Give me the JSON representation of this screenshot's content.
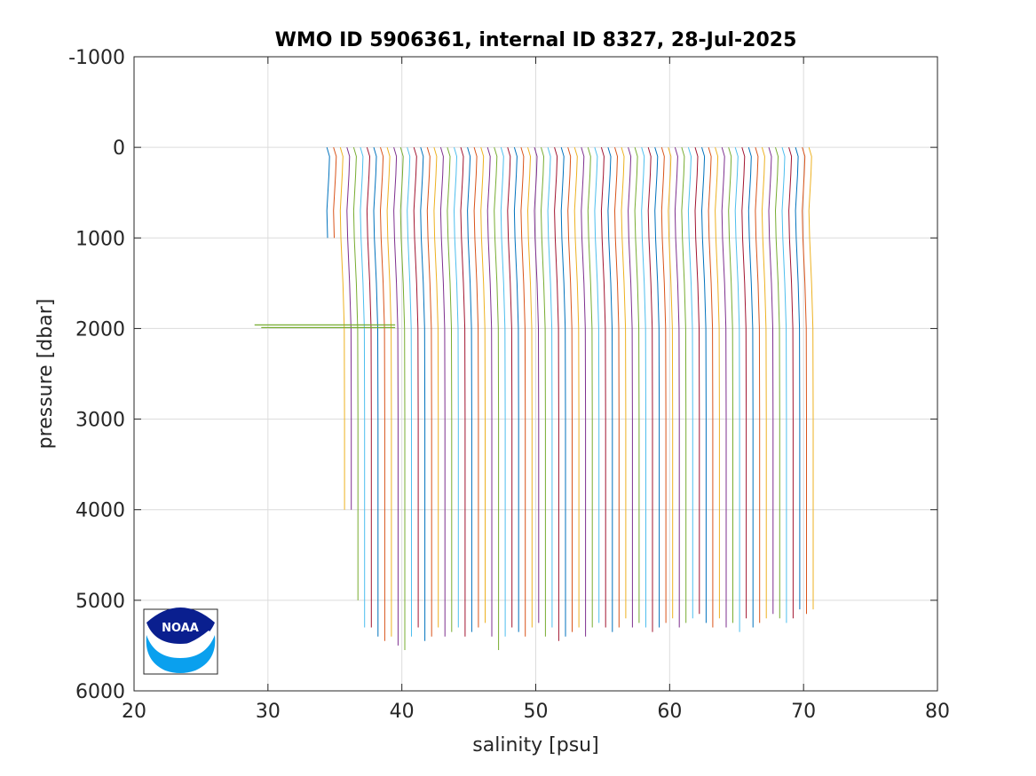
{
  "chart_data": {
    "type": "line",
    "title": "WMO ID 5906361, internal ID 8327, 28-Jul-2025",
    "xlabel": "salinity [psu]",
    "ylabel": "pressure [dbar]",
    "xlim": [
      20,
      80
    ],
    "ylim": [
      -1000,
      6000
    ],
    "y_reversed": true,
    "grid": true,
    "x_ticks": [
      20,
      30,
      40,
      50,
      60,
      70,
      80
    ],
    "y_ticks": [
      -1000,
      0,
      1000,
      2000,
      3000,
      4000,
      5000,
      6000
    ],
    "colors": [
      "#0072bd",
      "#d95319",
      "#edb120",
      "#7e2f8e",
      "#77ac30",
      "#4dbeee",
      "#a2142f"
    ],
    "profile_series": {
      "count": 73,
      "salinity_offset_step_psu": 0.5,
      "first_surface_salinity": 34.4,
      "base_profile": [
        {
          "pressure": 0,
          "salinity": 34.4
        },
        {
          "pressure": 100,
          "salinity": 34.6
        },
        {
          "pressure": 300,
          "salinity": 34.55
        },
        {
          "pressure": 700,
          "salinity": 34.4
        },
        {
          "pressure": 1000,
          "salinity": 34.45
        },
        {
          "pressure": 1500,
          "salinity": 34.6
        },
        {
          "pressure": 2000,
          "salinity": 34.7
        },
        {
          "pressure": 3000,
          "salinity": 34.72
        },
        {
          "pressure": 4000,
          "salinity": 34.72
        },
        {
          "pressure": 5000,
          "salinity": 34.72
        }
      ],
      "max_pressures": [
        1000,
        1000,
        4000,
        4000,
        5000,
        5300,
        5300,
        5400,
        5450,
        5400,
        5500,
        5550,
        5400,
        5300,
        5450,
        5400,
        5300,
        5400,
        5350,
        5300,
        5400,
        5350,
        5300,
        5250,
        5400,
        5550,
        5400,
        5300,
        5350,
        5400,
        5300,
        5250,
        5400,
        5300,
        5450,
        5400,
        5350,
        5300,
        5400,
        5300,
        5250,
        5300,
        5350,
        5300,
        5200,
        5300,
        5250,
        5300,
        5350,
        5300,
        5250,
        5200,
        5300,
        5250,
        5200,
        5150,
        5250,
        5300,
        5200,
        5300,
        5250,
        5350,
        5200,
        5300,
        5250,
        5200,
        5150,
        5200,
        5250,
        5200,
        5100,
        5150,
        5100
      ]
    },
    "annotations": [
      {
        "type": "spike",
        "pressure": 1960,
        "salinity_from": 29.0,
        "salinity_to": 39.5
      }
    ]
  },
  "logo": {
    "text": "NOAA",
    "name": "noaa-logo"
  }
}
